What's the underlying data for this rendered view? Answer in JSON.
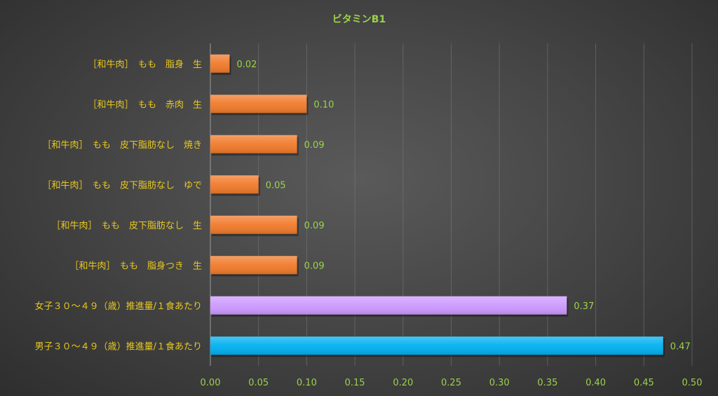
{
  "chart_data": {
    "type": "bar",
    "orientation": "horizontal",
    "title": "ビタミンB1",
    "xlabel": "",
    "ylabel": "",
    "xlim": [
      0,
      0.5
    ],
    "x_ticks": [
      "0.00",
      "0.05",
      "0.10",
      "0.15",
      "0.20",
      "0.25",
      "0.30",
      "0.35",
      "0.40",
      "0.45",
      "0.50"
    ],
    "grid": true,
    "categories": [
      "［和牛肉］　もも　脂身　生",
      "［和牛肉］　もも　赤肉　生",
      "［和牛肉］　もも　皮下脂肪なし　焼き",
      "［和牛肉］　もも　皮下脂肪なし　ゆで",
      "［和牛肉］　もも　皮下脂肪なし　生",
      "［和牛肉］　もも　脂身つき　生",
      "女子３０～４９（歳）推進量/１食あたり",
      "男子３０～４９（歳）推進量/１食あたり"
    ],
    "values": [
      0.02,
      0.1,
      0.09,
      0.05,
      0.09,
      0.09,
      0.37,
      0.47
    ],
    "value_labels": [
      "0.02",
      "0.10",
      "0.09",
      "0.05",
      "0.09",
      "0.09",
      "0.37",
      "0.47"
    ],
    "bar_colors": [
      "#f07a2a",
      "#f07a2a",
      "#f07a2a",
      "#f07a2a",
      "#f07a2a",
      "#f07a2a",
      "#cc99ff",
      "#00b0f0"
    ]
  }
}
